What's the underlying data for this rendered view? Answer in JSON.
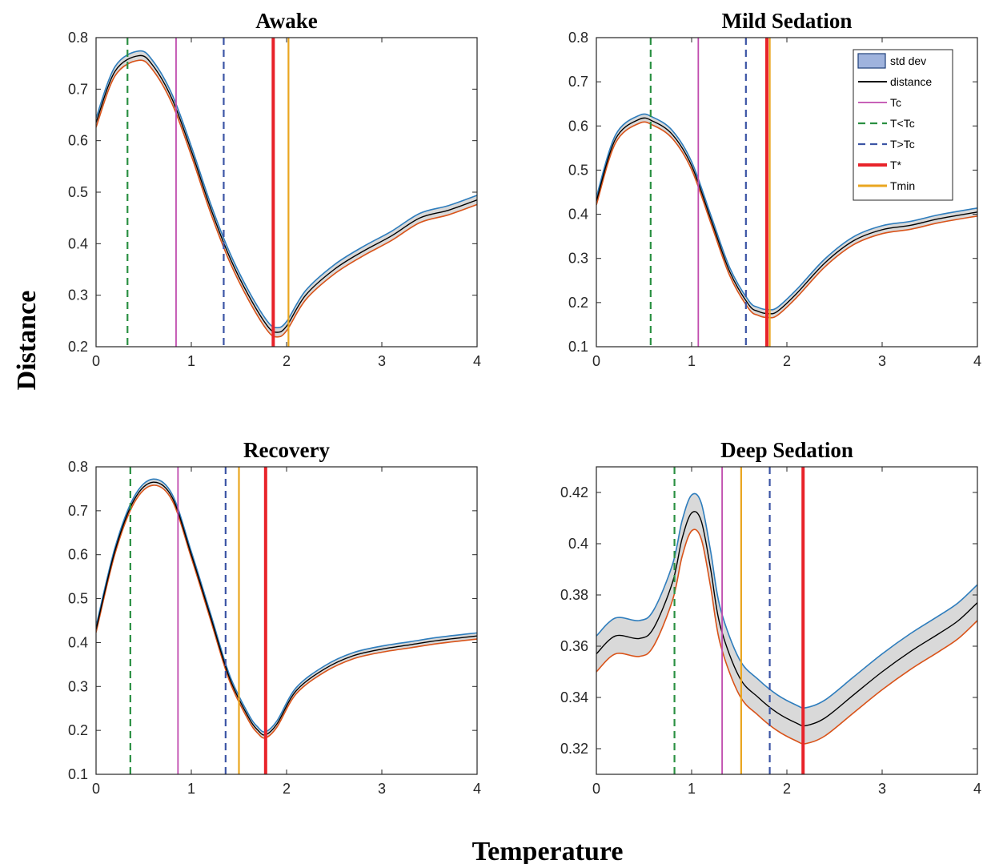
{
  "figure": {
    "ylabel": "Distance",
    "xlabel": "Temperature"
  },
  "legend": {
    "entries": [
      "std dev",
      "distance",
      "Tc",
      "T<Tc",
      "T>Tc",
      "T*",
      "Tmin"
    ],
    "colors": [
      "#9fb3dd",
      "#000000",
      "#c04cae",
      "#2a9042",
      "#3c55a5",
      "#e8232a",
      "#eaa620"
    ]
  },
  "colors": {
    "band_fill": "#d9d9d9",
    "upper_edge": "#2e7dbd",
    "lower_edge": "#d95319",
    "mean_line": "#000000",
    "Tc": "#c04cae",
    "T_lt_Tc": "#2a9042",
    "T_gt_Tc": "#3c55a5",
    "T_star": "#e8232a",
    "Tmin": "#eaa620"
  },
  "chart_data": [
    {
      "type": "line",
      "title": "Awake",
      "xlim": [
        0,
        4
      ],
      "ylim": [
        0.2,
        0.8
      ],
      "xticks": [
        "0",
        "1",
        "2",
        "3",
        "4"
      ],
      "yticks": [
        "0.2",
        "0.3",
        "0.4",
        "0.5",
        "0.6",
        "0.7",
        "0.8"
      ],
      "x": [
        0,
        0.2,
        0.45,
        0.6,
        0.8,
        1.0,
        1.2,
        1.4,
        1.6,
        1.8,
        1.9,
        2.0,
        2.2,
        2.5,
        2.8,
        3.1,
        3.4,
        3.7,
        4.0
      ],
      "distance": [
        0.635,
        0.735,
        0.765,
        0.745,
        0.68,
        0.58,
        0.47,
        0.375,
        0.3,
        0.24,
        0.228,
        0.24,
        0.3,
        0.35,
        0.385,
        0.415,
        0.45,
        0.465,
        0.485
      ],
      "std_dev": 0.009,
      "markers": {
        "T<Tc": 0.33,
        "Tc": 0.84,
        "T>Tc": 1.34,
        "T*": 1.86,
        "Tmin": 2.02
      }
    },
    {
      "type": "line",
      "title": "Mild Sedation",
      "xlim": [
        0,
        4
      ],
      "ylim": [
        0.1,
        0.8
      ],
      "xticks": [
        "0",
        "1",
        "2",
        "3",
        "4"
      ],
      "yticks": [
        "0.1",
        "0.2",
        "0.3",
        "0.4",
        "0.5",
        "0.6",
        "0.7",
        "0.8"
      ],
      "x": [
        0,
        0.2,
        0.45,
        0.6,
        0.8,
        1.0,
        1.2,
        1.4,
        1.6,
        1.7,
        1.8,
        1.9,
        2.1,
        2.4,
        2.7,
        3.0,
        3.3,
        3.6,
        4.0
      ],
      "distance": [
        0.43,
        0.57,
        0.615,
        0.61,
        0.58,
        0.51,
        0.39,
        0.27,
        0.195,
        0.18,
        0.175,
        0.18,
        0.22,
        0.29,
        0.34,
        0.365,
        0.375,
        0.39,
        0.405
      ],
      "std_dev": 0.009,
      "markers": {
        "T<Tc": 0.57,
        "Tc": 1.07,
        "T>Tc": 1.57,
        "T*": 1.79,
        "Tmin": 1.82
      }
    },
    {
      "type": "line",
      "title": "Recovery",
      "xlim": [
        0,
        4
      ],
      "ylim": [
        0.1,
        0.8
      ],
      "xticks": [
        "0",
        "1",
        "2",
        "3",
        "4"
      ],
      "yticks": [
        "0.1",
        "0.2",
        "0.3",
        "0.4",
        "0.5",
        "0.6",
        "0.7",
        "0.8"
      ],
      "x": [
        0,
        0.2,
        0.4,
        0.6,
        0.8,
        1.0,
        1.2,
        1.4,
        1.6,
        1.7,
        1.78,
        1.9,
        2.1,
        2.4,
        2.7,
        3.0,
        3.3,
        3.6,
        4.0
      ],
      "distance": [
        0.43,
        0.61,
        0.725,
        0.765,
        0.73,
        0.6,
        0.46,
        0.32,
        0.23,
        0.2,
        0.19,
        0.215,
        0.29,
        0.34,
        0.37,
        0.385,
        0.395,
        0.405,
        0.415
      ],
      "std_dev": 0.007,
      "markers": {
        "T<Tc": 0.36,
        "Tc": 0.86,
        "T>Tc": 1.36,
        "T*": 1.78,
        "Tmin": 1.5
      }
    },
    {
      "type": "line",
      "title": "Deep Sedation",
      "xlim": [
        0,
        4
      ],
      "ylim": [
        0.31,
        0.43
      ],
      "xticks": [
        "0",
        "1",
        "2",
        "3",
        "4"
      ],
      "yticks": [
        "0.32",
        "0.34",
        "0.36",
        "0.38",
        "0.4",
        "0.42"
      ],
      "x": [
        0,
        0.2,
        0.45,
        0.6,
        0.8,
        0.9,
        1.0,
        1.1,
        1.2,
        1.3,
        1.5,
        1.7,
        1.9,
        2.1,
        2.2,
        2.4,
        2.7,
        3.0,
        3.3,
        3.6,
        3.8,
        4.0
      ],
      "distance": [
        0.357,
        0.364,
        0.363,
        0.367,
        0.385,
        0.402,
        0.412,
        0.409,
        0.39,
        0.368,
        0.348,
        0.34,
        0.334,
        0.33,
        0.329,
        0.332,
        0.341,
        0.35,
        0.358,
        0.365,
        0.37,
        0.377
      ],
      "std_dev": 0.007,
      "markers": {
        "T<Tc": 0.82,
        "Tc": 1.32,
        "T>Tc": 1.82,
        "T*": 2.17,
        "Tmin": 1.52
      }
    }
  ]
}
